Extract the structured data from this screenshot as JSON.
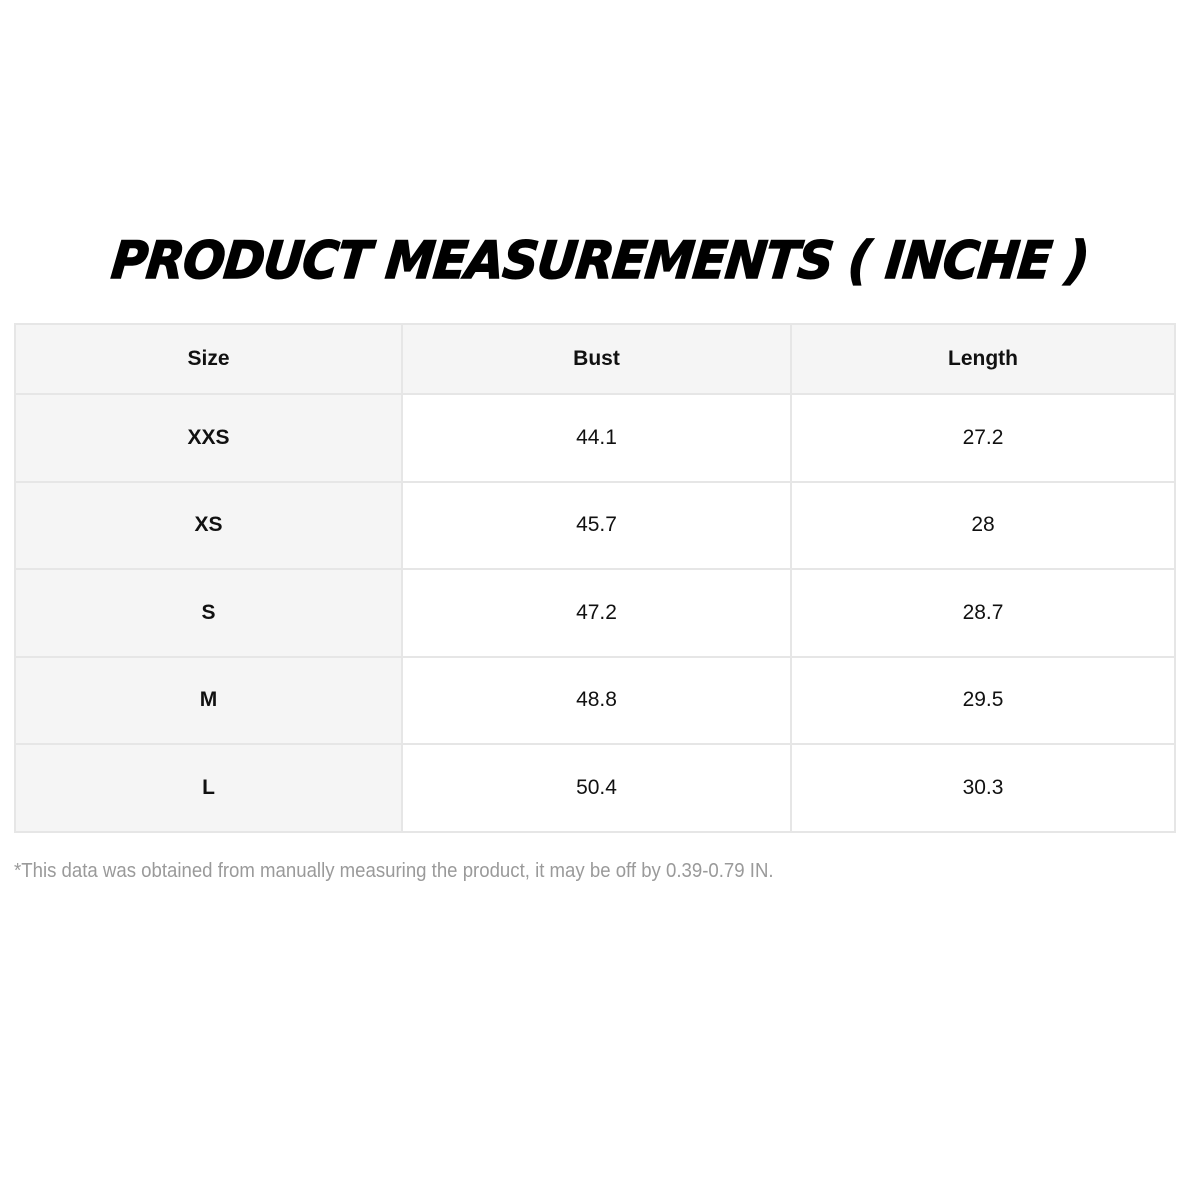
{
  "title": "PRODUCT MEASUREMENTS ( INCHE )",
  "table": {
    "headers": [
      "Size",
      "Bust",
      "Length"
    ],
    "rows": [
      [
        "XXS",
        "44.1",
        "27.2"
      ],
      [
        "XS",
        "45.7",
        "28"
      ],
      [
        "S",
        "47.2",
        "28.7"
      ],
      [
        "M",
        "48.8",
        "29.5"
      ],
      [
        "L",
        "50.4",
        "30.3"
      ]
    ]
  },
  "note": "*This data was obtained from manually measuring the product, it may be off by 0.39-0.79 IN."
}
